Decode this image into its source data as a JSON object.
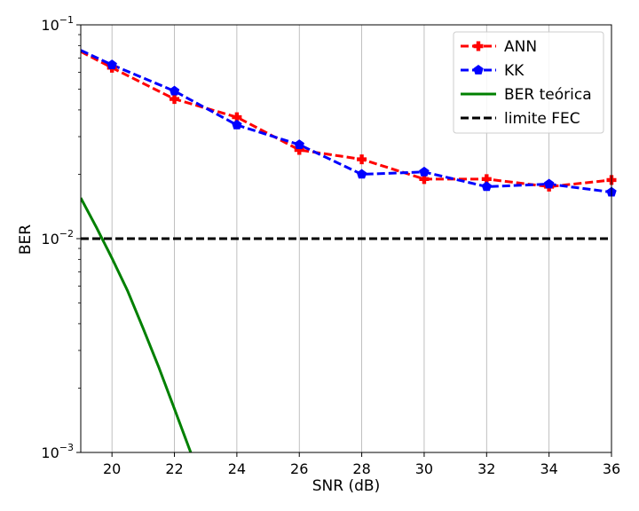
{
  "chart_data": {
    "type": "line",
    "xlabel": "SNR (dB)",
    "ylabel": "BER",
    "xlim": [
      19,
      36
    ],
    "ylim": [
      0.001,
      0.1
    ],
    "yscale": "log",
    "x_ticks": [
      20,
      22,
      24,
      26,
      28,
      30,
      32,
      34,
      36
    ],
    "y_ticks": [
      {
        "value": 0.001,
        "base": "10",
        "exp": "−3"
      },
      {
        "value": 0.01,
        "base": "10",
        "exp": "−2"
      },
      {
        "value": 0.1,
        "base": "10",
        "exp": "−1"
      }
    ],
    "grid": "vertical",
    "legend_position": "top-right",
    "series": [
      {
        "name": "ANN",
        "color": "#ff0000",
        "marker": "plus",
        "dash": "dashed",
        "x": [
          19,
          20,
          22,
          24,
          26,
          28,
          30,
          32,
          34,
          36
        ],
        "y": [
          0.075,
          0.063,
          0.045,
          0.037,
          0.026,
          0.0235,
          0.019,
          0.019,
          0.0175,
          0.0188
        ]
      },
      {
        "name": "KK",
        "color": "#0000ff",
        "marker": "pentagon",
        "dash": "dashed",
        "x": [
          19,
          20,
          22,
          24,
          26,
          28,
          30,
          32,
          34,
          36
        ],
        "y": [
          0.076,
          0.065,
          0.049,
          0.034,
          0.0275,
          0.02,
          0.0205,
          0.0175,
          0.018,
          0.0165
        ]
      },
      {
        "name": "BER teórica",
        "color": "#008000",
        "marker": "none",
        "dash": "solid",
        "x": [
          19,
          19.5,
          20,
          20.5,
          21,
          21.5,
          22,
          22.5,
          22.7
        ],
        "y": [
          0.0155,
          0.0113,
          0.0081,
          0.0057,
          0.0038,
          0.0025,
          0.0016,
          0.00102,
          0.00085
        ]
      },
      {
        "name": "limite FEC",
        "color": "#000000",
        "marker": "none",
        "dash": "dashed",
        "x": [
          19,
          36
        ],
        "y": [
          0.01,
          0.01
        ]
      }
    ]
  }
}
